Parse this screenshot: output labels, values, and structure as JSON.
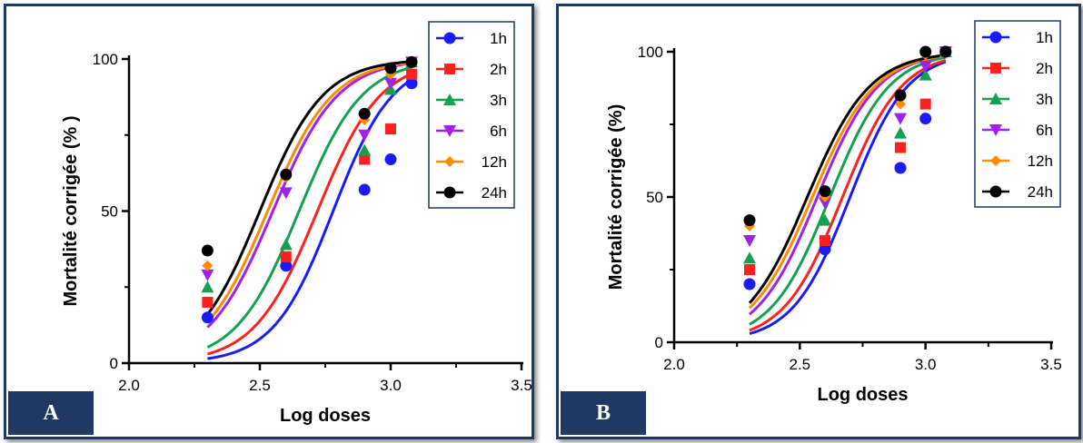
{
  "chart_data": [
    {
      "panel": "A",
      "type": "scatter",
      "xlabel": "Log doses",
      "ylabel": "Mortalité corrigée (% )",
      "xlim": [
        2.0,
        3.5
      ],
      "ylim": [
        0,
        100
      ],
      "xticks": [
        "2.0",
        "2.5",
        "3.0",
        "3.5"
      ],
      "yticks": [
        "0",
        "50",
        "100"
      ],
      "x": [
        2.3,
        2.6,
        2.9,
        3.0,
        3.08
      ],
      "legend": "top-right",
      "series": [
        {
          "name": "1h",
          "marker": "circle",
          "color": "#1a1aff",
          "values": [
            15,
            32,
            57,
            67,
            92
          ],
          "fit": {
            "ld50": 2.78,
            "slope": 3.8
          }
        },
        {
          "name": "2h",
          "marker": "square",
          "color": "#ff2020",
          "values": [
            20,
            35,
            67,
            77,
            95
          ],
          "fit": {
            "ld50": 2.72,
            "slope": 3.6
          }
        },
        {
          "name": "3h",
          "marker": "triangle",
          "color": "#13a050",
          "values": [
            25,
            39,
            70,
            90,
            99
          ],
          "fit": {
            "ld50": 2.65,
            "slope": 3.6
          }
        },
        {
          "name": "6h",
          "marker": "tri-down",
          "color": "#a020f0",
          "values": [
            29,
            56,
            75,
            92,
            99
          ],
          "fit": {
            "ld50": 2.55,
            "slope": 3.5
          }
        },
        {
          "name": "12h",
          "marker": "diamond",
          "color": "#ff8c00",
          "values": [
            32,
            61,
            80,
            95,
            99
          ],
          "fit": {
            "ld50": 2.53,
            "slope": 3.5
          }
        },
        {
          "name": "24h",
          "marker": "circle",
          "color": "#000000",
          "values": [
            37,
            62,
            82,
            97,
            99
          ],
          "fit": {
            "ld50": 2.5,
            "slope": 3.6
          }
        }
      ]
    },
    {
      "panel": "B",
      "type": "scatter",
      "xlabel": "Log doses",
      "ylabel": "Mortalité corrigée (%)",
      "xlim": [
        2.0,
        3.5
      ],
      "ylim": [
        0,
        100
      ],
      "xticks": [
        "2.0",
        "2.5",
        "3.0",
        "3.5"
      ],
      "yticks": [
        "0",
        "50",
        "100"
      ],
      "x": [
        2.3,
        2.6,
        2.9,
        3.0,
        3.08
      ],
      "legend": "top-right",
      "series": [
        {
          "name": "1h",
          "marker": "circle",
          "color": "#1a1aff",
          "values": [
            20,
            32,
            60,
            77,
            100
          ],
          "fit": {
            "ld50": 2.7,
            "slope": 3.8
          }
        },
        {
          "name": "2h",
          "marker": "square",
          "color": "#ff2020",
          "values": [
            25,
            35,
            67,
            82,
            100
          ],
          "fit": {
            "ld50": 2.67,
            "slope": 3.7
          }
        },
        {
          "name": "3h",
          "marker": "triangle",
          "color": "#13a050",
          "values": [
            29,
            42,
            72,
            92,
            100
          ],
          "fit": {
            "ld50": 2.62,
            "slope": 3.7
          }
        },
        {
          "name": "6h",
          "marker": "tri-down",
          "color": "#a020f0",
          "values": [
            35,
            48,
            77,
            95,
            100
          ],
          "fit": {
            "ld50": 2.57,
            "slope": 3.6
          }
        },
        {
          "name": "12h",
          "marker": "diamond",
          "color": "#ff8c00",
          "values": [
            40,
            50,
            82,
            99,
            100
          ],
          "fit": {
            "ld50": 2.55,
            "slope": 3.5
          }
        },
        {
          "name": "24h",
          "marker": "circle",
          "color": "#000000",
          "values": [
            42,
            52,
            85,
            100,
            100
          ],
          "fit": {
            "ld50": 2.53,
            "slope": 3.5
          }
        }
      ]
    }
  ]
}
